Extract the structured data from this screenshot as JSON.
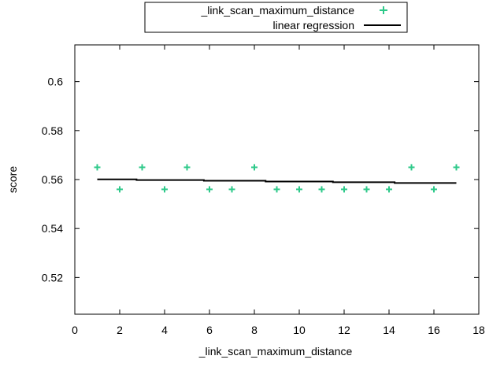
{
  "chart_data": {
    "type": "scatter",
    "title": "",
    "xlabel": "_link_scan_maximum_distance",
    "ylabel": "score",
    "xlim": [
      0,
      18
    ],
    "ylim": [
      0.505,
      0.615
    ],
    "xticks": [
      0,
      2,
      4,
      6,
      8,
      10,
      12,
      14,
      16,
      18
    ],
    "yticks": [
      0.52,
      0.54,
      0.56,
      0.58,
      0.6
    ],
    "grid": false,
    "legend_position": "top-center (outside plot)",
    "series": [
      {
        "name": "_link_scan_maximum_distance",
        "kind": "points",
        "marker": "plus",
        "color": "#2ec98a",
        "x": [
          1,
          2,
          3,
          4,
          5,
          6,
          7,
          8,
          9,
          10,
          11,
          12,
          13,
          14,
          15,
          16,
          17
        ],
        "y": [
          0.565,
          0.556,
          0.565,
          0.556,
          0.565,
          0.556,
          0.556,
          0.565,
          0.556,
          0.556,
          0.556,
          0.556,
          0.556,
          0.556,
          0.565,
          0.556,
          0.565
        ]
      },
      {
        "name": "linear regression",
        "kind": "steps",
        "color": "#000000",
        "x": [
          1,
          2.75,
          2.75,
          5.75,
          5.75,
          8.5,
          8.5,
          11.5,
          11.5,
          14.25,
          14.25,
          17
        ],
        "y": [
          0.5601,
          0.5601,
          0.5598,
          0.5598,
          0.5595,
          0.5595,
          0.5592,
          0.5592,
          0.5589,
          0.5589,
          0.5586,
          0.5586
        ]
      }
    ]
  }
}
